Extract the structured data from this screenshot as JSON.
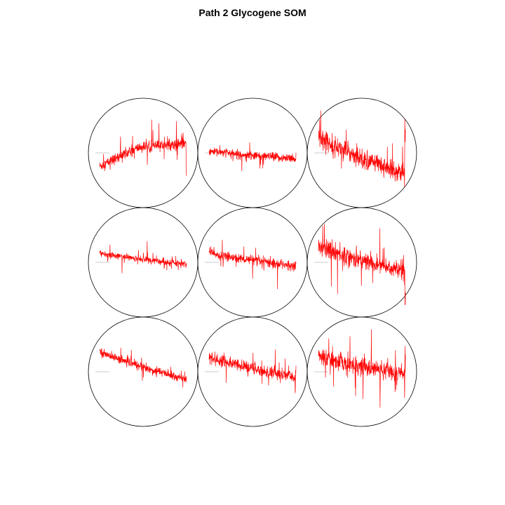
{
  "chart_data": {
    "type": "line",
    "title": "Path 2 Glycogene SOM",
    "grid": false,
    "layout": {
      "rows": 3,
      "cols": 3
    },
    "colors": {
      "codebook_line": "#ff0000",
      "circle": "#000000",
      "baseline": "#999999"
    },
    "series_shape": {
      "points": 420
    },
    "nodes": [
      {
        "row": 1,
        "col": 1,
        "start": -0.35,
        "end": 0.05,
        "noise": 0.2,
        "drop_end": true
      },
      {
        "row": 1,
        "col": 2,
        "start": 0.05,
        "end": -0.15,
        "noise": 0.16
      },
      {
        "row": 1,
        "col": 3,
        "start": 0.45,
        "end": -0.55,
        "noise": 0.35,
        "spike_end": true
      },
      {
        "row": 2,
        "col": 1,
        "start": 0.25,
        "end": -0.05,
        "noise": 0.12
      },
      {
        "row": 2,
        "col": 2,
        "start": 0.25,
        "end": -0.1,
        "noise": 0.17
      },
      {
        "row": 2,
        "col": 3,
        "start": 0.45,
        "end": -0.25,
        "noise": 0.35,
        "spike_end": true
      },
      {
        "row": 3,
        "col": 1,
        "start": 0.55,
        "end": -0.2,
        "noise": 0.15
      },
      {
        "row": 3,
        "col": 2,
        "start": 0.4,
        "end": -0.15,
        "noise": 0.22,
        "spike_end": true
      },
      {
        "row": 3,
        "col": 3,
        "start": 0.4,
        "end": -0.05,
        "noise": 0.32,
        "spike_end": true
      }
    ]
  }
}
